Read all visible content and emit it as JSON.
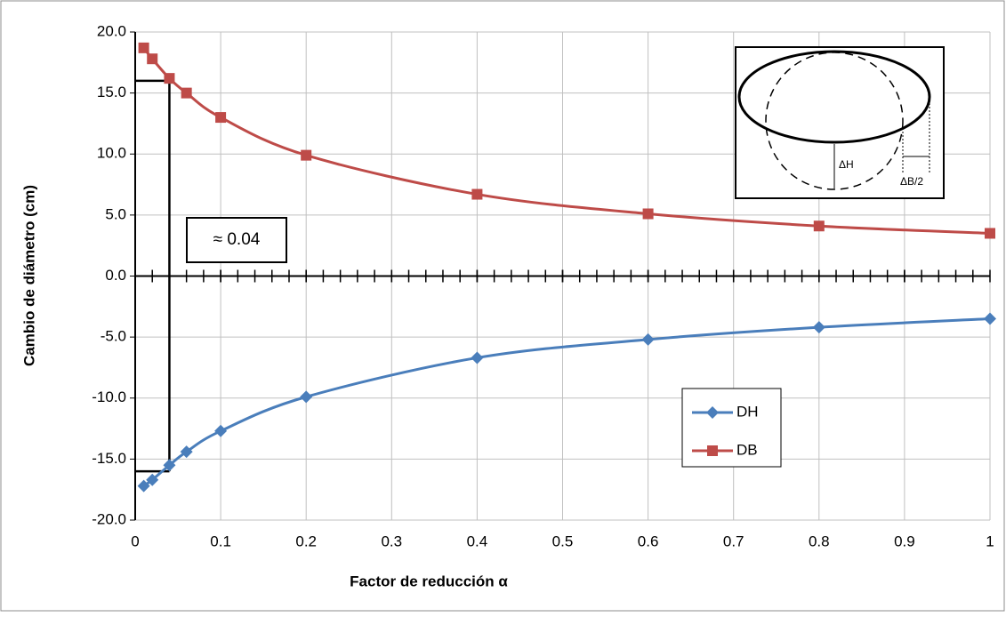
{
  "chart_data": {
    "type": "line",
    "x_label": "Factor de reducción α",
    "y_label": "Cambio de diámetro (cm)",
    "x": [
      0.01,
      0.02,
      0.04,
      0.06,
      0.1,
      0.2,
      0.4,
      0.6,
      0.8,
      1
    ],
    "series": [
      {
        "name": "DH",
        "color": "#4a7ebb",
        "marker": "diamond",
        "values": [
          -17.2,
          -16.7,
          -15.5,
          -14.4,
          -12.7,
          -9.9,
          -6.7,
          -5.2,
          -4.2,
          -3.5
        ]
      },
      {
        "name": "DB",
        "color": "#be4b48",
        "marker": "square",
        "values": [
          18.7,
          17.8,
          16.2,
          15.0,
          13.0,
          9.9,
          6.7,
          5.1,
          4.1,
          3.5
        ]
      }
    ],
    "xlim": [
      0,
      1
    ],
    "ylim": [
      -20,
      20
    ],
    "xticks": [
      0,
      0.1,
      0.2,
      0.3,
      0.4,
      0.5,
      0.6,
      0.7,
      0.8,
      0.9,
      1
    ],
    "yticks": [
      {
        "value": -20,
        "label": "-20.0"
      },
      {
        "value": -15,
        "label": "-15.0"
      },
      {
        "value": -10,
        "label": "-10.0"
      },
      {
        "value": -5,
        "label": "-5.0"
      },
      {
        "value": 0,
        "label": "0.0"
      },
      {
        "value": 5,
        "label": "5.0"
      },
      {
        "value": 10,
        "label": "10.0"
      },
      {
        "value": 15,
        "label": "15.0"
      },
      {
        "value": 20,
        "label": "20.0"
      }
    ],
    "grid": true,
    "annotation": {
      "text": "≈ 0.04",
      "x": 0.04,
      "y_top": 16,
      "y_bottom": -16
    },
    "inset_labels": [
      "ΔH",
      "ΔB/2"
    ]
  }
}
